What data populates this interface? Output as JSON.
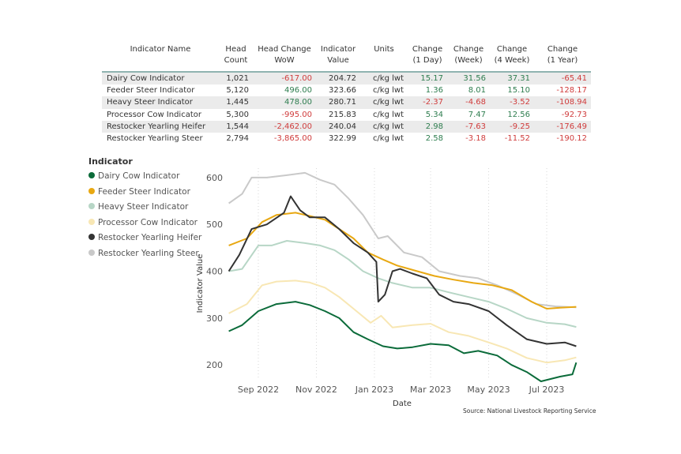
{
  "table": {
    "headers": [
      [
        "Indicator Name",
        ""
      ],
      [
        "Head",
        "Count"
      ],
      [
        "Head Change",
        "WoW"
      ],
      [
        "Indicator",
        "Value"
      ],
      [
        "Units",
        ""
      ],
      [
        "Change",
        "(1 Day)"
      ],
      [
        "Change",
        "(Week)"
      ],
      [
        "Change",
        "(4 Week)"
      ],
      [
        "Change",
        "(1 Year)"
      ]
    ],
    "rows": [
      [
        "Dairy Cow Indicator",
        "1,021",
        "-617.00",
        "204.72",
        "c/kg lwt",
        "15.17",
        "31.56",
        "37.31",
        "-65.41"
      ],
      [
        "Feeder Steer Indicator",
        "5,120",
        "496.00",
        "323.66",
        "c/kg lwt",
        "1.36",
        "8.01",
        "15.10",
        "-128.17"
      ],
      [
        "Heavy Steer Indicator",
        "1,445",
        "478.00",
        "280.71",
        "c/kg lwt",
        "-2.37",
        "-4.68",
        "-3.52",
        "-108.94"
      ],
      [
        "Processor Cow Indicator",
        "5,300",
        "-995.00",
        "215.83",
        "c/kg lwt",
        "5.34",
        "7.47",
        "12.56",
        "-92.73"
      ],
      [
        "Restocker Yearling Heifer",
        "1,544",
        "-2,462.00",
        "240.04",
        "c/kg lwt",
        "2.98",
        "-7.63",
        "-9.25",
        "-176.49"
      ],
      [
        "Restocker Yearling Steer",
        "2,794",
        "-3,865.00",
        "322.99",
        "c/kg lwt",
        "2.58",
        "-3.18",
        "-11.52",
        "-190.12"
      ]
    ]
  },
  "legend": {
    "title": "Indicator",
    "items": [
      {
        "label": "Dairy Cow Indicator",
        "color": "#0b6b3a"
      },
      {
        "label": "Feeder Steer Indicator",
        "color": "#e8a812"
      },
      {
        "label": "Heavy Steer Indicator",
        "color": "#b7d6c6"
      },
      {
        "label": "Processor Cow Indicator",
        "color": "#f8e7b4"
      },
      {
        "label": "Restocker Yearling Heifer",
        "color": "#333333"
      },
      {
        "label": "Restocker Yearling Steer",
        "color": "#c9c9c9"
      }
    ]
  },
  "source": "Source: National Livestock Reporting Service",
  "chart_data": {
    "type": "line",
    "xlabel": "Date",
    "ylabel": "Indicator Value",
    "x_ticks": [
      "Sep 2022",
      "Nov 2022",
      "Jan 2023",
      "Mar 2023",
      "May 2023",
      "Jul 2023"
    ],
    "y_ticks": [
      200,
      300,
      400,
      500,
      600
    ],
    "xlim": [
      "2022-07-29",
      "2023-08-04"
    ],
    "ylim": [
      170,
      620
    ],
    "grid": "vertical dotted",
    "series": [
      {
        "name": "Restocker Yearling Steer",
        "color": "#c9c9c9",
        "points": [
          [
            "2022-08-01",
            545
          ],
          [
            "2022-08-15",
            565
          ],
          [
            "2022-08-25",
            600
          ],
          [
            "2022-09-10",
            600
          ],
          [
            "2022-10-01",
            605
          ],
          [
            "2022-10-20",
            610
          ],
          [
            "2022-11-05",
            595
          ],
          [
            "2022-11-20",
            585
          ],
          [
            "2022-12-05",
            555
          ],
          [
            "2022-12-20",
            520
          ],
          [
            "2023-01-05",
            470
          ],
          [
            "2023-01-15",
            475
          ],
          [
            "2023-02-01",
            440
          ],
          [
            "2023-02-20",
            430
          ],
          [
            "2023-03-10",
            400
          ],
          [
            "2023-04-01",
            390
          ],
          [
            "2023-04-20",
            385
          ],
          [
            "2023-05-10",
            370
          ],
          [
            "2023-06-01",
            350
          ],
          [
            "2023-06-20",
            330
          ],
          [
            "2023-07-10",
            325
          ],
          [
            "2023-08-01",
            323
          ]
        ]
      },
      {
        "name": "Feeder Steer Indicator",
        "color": "#e8a812",
        "points": [
          [
            "2022-08-01",
            455
          ],
          [
            "2022-08-20",
            470
          ],
          [
            "2022-09-05",
            505
          ],
          [
            "2022-09-20",
            520
          ],
          [
            "2022-10-10",
            525
          ],
          [
            "2022-10-25",
            518
          ],
          [
            "2022-11-10",
            510
          ],
          [
            "2022-11-25",
            490
          ],
          [
            "2022-12-10",
            470
          ],
          [
            "2022-12-25",
            440
          ],
          [
            "2023-01-10",
            425
          ],
          [
            "2023-01-25",
            412
          ],
          [
            "2023-02-15",
            400
          ],
          [
            "2023-03-05",
            390
          ],
          [
            "2023-03-25",
            382
          ],
          [
            "2023-04-15",
            375
          ],
          [
            "2023-05-05",
            370
          ],
          [
            "2023-05-25",
            360
          ],
          [
            "2023-06-15",
            335
          ],
          [
            "2023-07-01",
            320
          ],
          [
            "2023-07-15",
            322
          ],
          [
            "2023-08-01",
            324
          ]
        ]
      },
      {
        "name": "Heavy Steer Indicator",
        "color": "#b7d6c6",
        "points": [
          [
            "2022-08-01",
            400
          ],
          [
            "2022-08-15",
            405
          ],
          [
            "2022-09-01",
            455
          ],
          [
            "2022-09-15",
            455
          ],
          [
            "2022-10-01",
            465
          ],
          [
            "2022-10-20",
            460
          ],
          [
            "2022-11-05",
            455
          ],
          [
            "2022-11-20",
            445
          ],
          [
            "2022-12-05",
            425
          ],
          [
            "2022-12-20",
            400
          ],
          [
            "2023-01-05",
            385
          ],
          [
            "2023-01-20",
            375
          ],
          [
            "2023-02-10",
            365
          ],
          [
            "2023-03-01",
            365
          ],
          [
            "2023-03-20",
            355
          ],
          [
            "2023-04-10",
            345
          ],
          [
            "2023-05-01",
            335
          ],
          [
            "2023-05-20",
            320
          ],
          [
            "2023-06-10",
            300
          ],
          [
            "2023-07-01",
            290
          ],
          [
            "2023-07-20",
            287
          ],
          [
            "2023-08-01",
            281
          ]
        ]
      },
      {
        "name": "Processor Cow Indicator",
        "color": "#f8e7b4",
        "points": [
          [
            "2022-08-01",
            310
          ],
          [
            "2022-08-20",
            330
          ],
          [
            "2022-09-05",
            370
          ],
          [
            "2022-09-20",
            378
          ],
          [
            "2022-10-10",
            380
          ],
          [
            "2022-10-25",
            376
          ],
          [
            "2022-11-10",
            365
          ],
          [
            "2022-11-25",
            345
          ],
          [
            "2022-12-10",
            320
          ],
          [
            "2022-12-28",
            290
          ],
          [
            "2023-01-08",
            305
          ],
          [
            "2023-01-20",
            280
          ],
          [
            "2023-02-10",
            285
          ],
          [
            "2023-03-01",
            288
          ],
          [
            "2023-03-20",
            270
          ],
          [
            "2023-04-10",
            262
          ],
          [
            "2023-05-01",
            248
          ],
          [
            "2023-05-20",
            235
          ],
          [
            "2023-06-10",
            215
          ],
          [
            "2023-07-01",
            205
          ],
          [
            "2023-07-20",
            210
          ],
          [
            "2023-08-01",
            216
          ]
        ]
      },
      {
        "name": "Restocker Yearling Heifer",
        "color": "#333333",
        "points": [
          [
            "2022-08-01",
            400
          ],
          [
            "2022-08-12",
            435
          ],
          [
            "2022-08-25",
            490
          ],
          [
            "2022-09-10",
            500
          ],
          [
            "2022-09-28",
            525
          ],
          [
            "2022-10-05",
            560
          ],
          [
            "2022-10-15",
            530
          ],
          [
            "2022-10-25",
            515
          ],
          [
            "2022-11-10",
            515
          ],
          [
            "2022-11-25",
            490
          ],
          [
            "2022-12-10",
            460
          ],
          [
            "2022-12-25",
            440
          ],
          [
            "2023-01-03",
            420
          ],
          [
            "2023-01-05",
            335
          ],
          [
            "2023-01-12",
            350
          ],
          [
            "2023-01-20",
            400
          ],
          [
            "2023-01-28",
            405
          ],
          [
            "2023-02-10",
            395
          ],
          [
            "2023-02-25",
            385
          ],
          [
            "2023-03-10",
            350
          ],
          [
            "2023-03-25",
            335
          ],
          [
            "2023-04-10",
            330
          ],
          [
            "2023-05-01",
            315
          ],
          [
            "2023-05-20",
            285
          ],
          [
            "2023-06-10",
            255
          ],
          [
            "2023-07-01",
            245
          ],
          [
            "2023-07-20",
            248
          ],
          [
            "2023-08-01",
            240
          ]
        ]
      },
      {
        "name": "Dairy Cow Indicator",
        "color": "#0b6b3a",
        "points": [
          [
            "2022-08-01",
            272
          ],
          [
            "2022-08-15",
            285
          ],
          [
            "2022-09-01",
            315
          ],
          [
            "2022-09-20",
            330
          ],
          [
            "2022-10-10",
            335
          ],
          [
            "2022-10-25",
            328
          ],
          [
            "2022-11-10",
            315
          ],
          [
            "2022-11-25",
            300
          ],
          [
            "2022-12-10",
            270
          ],
          [
            "2022-12-25",
            255
          ],
          [
            "2023-01-10",
            240
          ],
          [
            "2023-01-25",
            235
          ],
          [
            "2023-02-10",
            238
          ],
          [
            "2023-03-01",
            245
          ],
          [
            "2023-03-20",
            242
          ],
          [
            "2023-04-05",
            225
          ],
          [
            "2023-04-20",
            230
          ],
          [
            "2023-05-10",
            220
          ],
          [
            "2023-05-25",
            200
          ],
          [
            "2023-06-10",
            185
          ],
          [
            "2023-06-25",
            165
          ],
          [
            "2023-07-15",
            175
          ],
          [
            "2023-07-28",
            180
          ],
          [
            "2023-08-01",
            205
          ]
        ]
      }
    ]
  }
}
